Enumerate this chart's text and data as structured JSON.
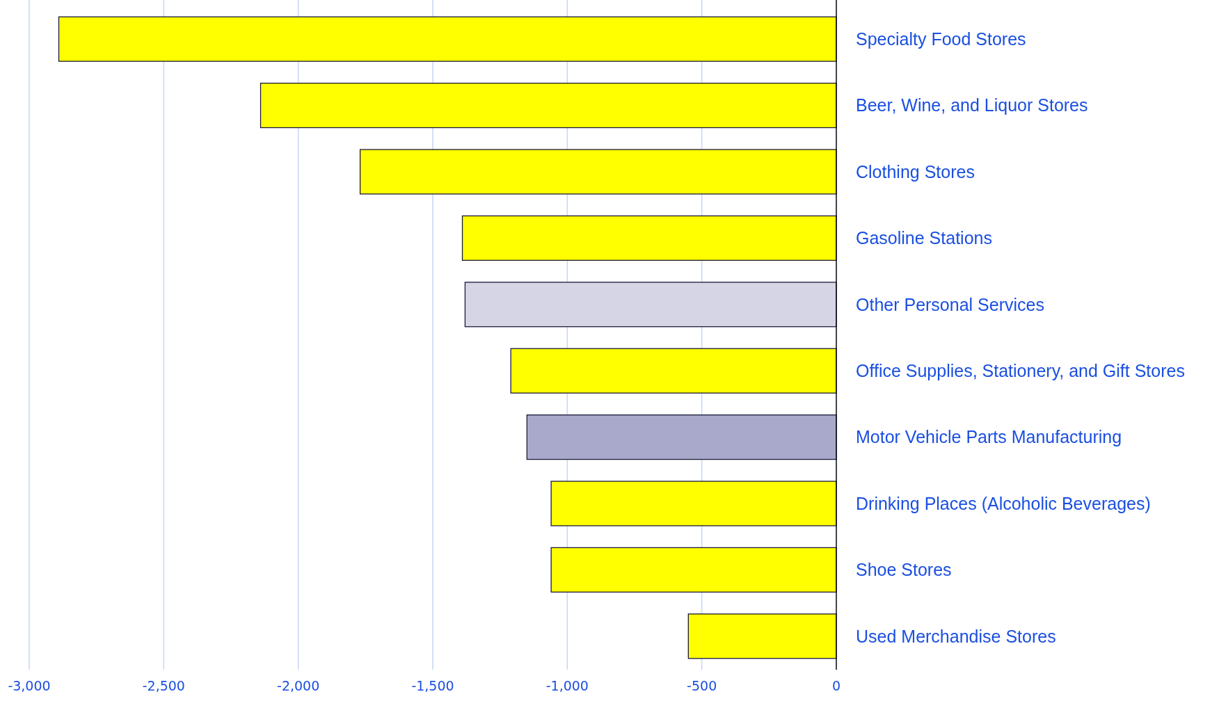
{
  "chart_data": {
    "type": "bar",
    "orientation": "horizontal",
    "categories": [
      "Specialty Food Stores",
      "Beer, Wine, and Liquor Stores",
      "Clothing Stores",
      "Gasoline Stations",
      "Other Personal Services",
      "Office Supplies, Stationery, and Gift Stores",
      "Motor Vehicle Parts Manufacturing",
      "Drinking Places (Alcoholic Beverages)",
      "Shoe Stores",
      "Used Merchandise Stores"
    ],
    "values": [
      -2890,
      -2140,
      -1770,
      -1390,
      -1380,
      -1210,
      -1150,
      -1060,
      -1060,
      -550
    ],
    "colors": [
      "#ffff00",
      "#ffff00",
      "#ffff00",
      "#ffff00",
      "#d5d5e5",
      "#ffff00",
      "#a9a9cb",
      "#ffff00",
      "#ffff00",
      "#ffff00"
    ],
    "xlim": [
      -3000,
      0
    ],
    "xticks": [
      {
        "value": -3000,
        "label": "-3,000"
      },
      {
        "value": -2500,
        "label": "-2,500"
      },
      {
        "value": -2000,
        "label": "-2,000"
      },
      {
        "value": -1500,
        "label": "-1,500"
      },
      {
        "value": -1000,
        "label": "-1,000"
      },
      -500,
      0
    ],
    "grid": "x"
  }
}
